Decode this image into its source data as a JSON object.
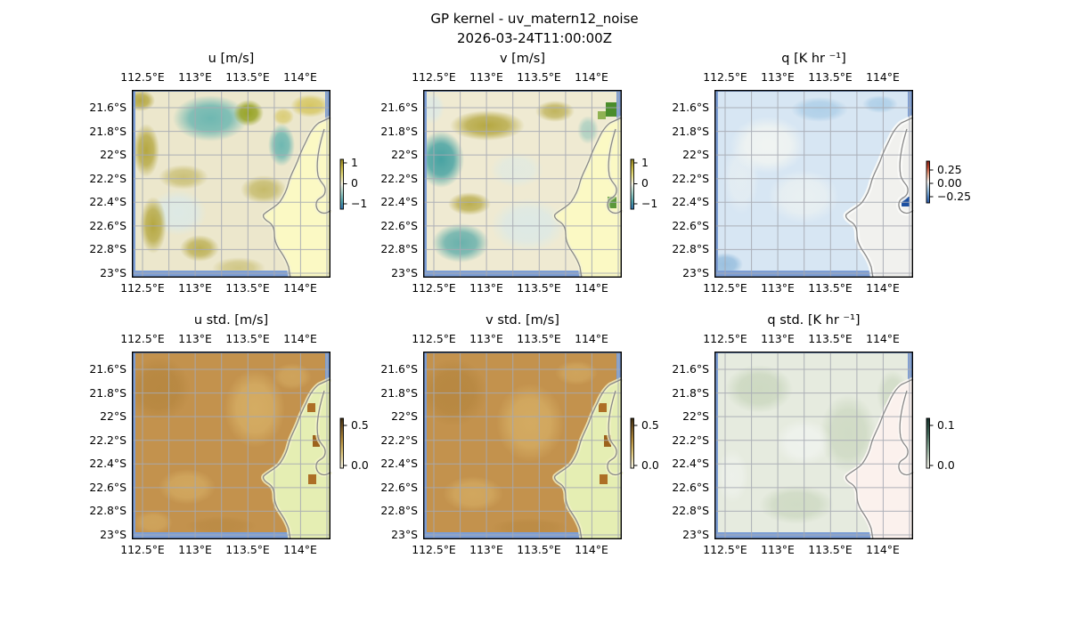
{
  "figure": {
    "suptitle_line1": "GP kernel - uv_matern12_noise",
    "suptitle_line2": "2026-03-24T11:00:00Z"
  },
  "axes": {
    "lon_ticks": [
      "112.5°E",
      "113°E",
      "113.5°E",
      "114°E"
    ],
    "lat_ticks": [
      "21.6°S",
      "21.8°S",
      "22°S",
      "22.2°S",
      "22.4°S",
      "22.6°S",
      "22.8°S",
      "23°S"
    ]
  },
  "panels": [
    {
      "id": "u",
      "title": "u [m/s]",
      "colorbar": {
        "ticks": [
          "1",
          "0",
          "−1"
        ]
      }
    },
    {
      "id": "v",
      "title": "v [m/s]",
      "colorbar": {
        "ticks": [
          "1",
          "0",
          "−1"
        ]
      }
    },
    {
      "id": "q",
      "title": "q [K hr ⁻¹]",
      "colorbar": {
        "ticks": [
          "0.25",
          "0.00",
          "−0.25"
        ]
      }
    },
    {
      "id": "u_std",
      "title": "u std. [m/s]",
      "colorbar": {
        "ticks": [
          "0.5",
          "0.0"
        ]
      }
    },
    {
      "id": "v_std",
      "title": "v std. [m/s]",
      "colorbar": {
        "ticks": [
          "0.5",
          "0.0"
        ]
      }
    },
    {
      "id": "q_std",
      "title": "q std. [K hr ⁻¹]",
      "colorbar": {
        "ticks": [
          "0.1",
          "0.0"
        ]
      }
    }
  ],
  "chart_data": {
    "type": "heatmap",
    "subtype": "geographic pcolormesh maps, 2 rows x 3 columns, cartopy-style with coastline of North West Cape / Exmouth, Western Australia",
    "suptitle": "GP kernel - uv_matern12_noise  2026-03-24T11:00:00Z",
    "lon_extent_deg_e": [
      112.35,
      114.25
    ],
    "lat_extent_deg_s": [
      -23.05,
      -21.55
    ],
    "lon_tick_values_e": [
      112.5,
      113.0,
      113.5,
      114.0
    ],
    "lat_tick_values_s": [
      -21.6,
      -21.8,
      -22.0,
      -22.2,
      -22.4,
      -22.6,
      -22.8,
      -23.0
    ],
    "gridline_spacing_deg": {
      "lon": 0.25,
      "lat": 0.2
    },
    "grid": true,
    "panels": [
      {
        "title": "u [m/s]",
        "row": 1,
        "col": 1,
        "cmap": "olive-yellow / white / teal diverging",
        "colorbar_ticks": [
          1,
          0,
          -1
        ],
        "description": "GP mean zonal velocity: mottled olive-yellow positive patches (~0.3-0.8) over most of the ocean with teal negative blobs (~-0.5) at top-center and east of 113.5°E near the cape; land masked pale yellow"
      },
      {
        "title": "v [m/s]",
        "row": 1,
        "col": 2,
        "cmap": "olive-yellow / white / teal diverging",
        "colorbar_ticks": [
          1,
          0,
          -1
        ],
        "description": "GP mean meridional velocity: strong teal negative blobs (~-0.8) at west-center (112.5°E, 22°S) and southwest (112.8°E, 22.8°S); olive positive band along north; dark green pixels (~1) at top-right corner and at 114.2°E, 22.4°S"
      },
      {
        "title": "q [K hr ⁻¹]",
        "row": 1,
        "col": 3,
        "cmap": "red / white / blue diverging (RdBu-like)",
        "colorbar_ticks": [
          0.25,
          0.0,
          -0.25
        ],
        "description": "GP mean heating rate: weakly negative (light blue, ~-0.05 to -0.1) over the ocean, near zero (white) over land, white NaN cells hugging the coastline, one strong negative dark-blue pixel (~-0.3) near 114.2°E 22.35°S"
      },
      {
        "title": "u std. [m/s]",
        "row": 2,
        "col": 1,
        "cmap": "cream-to-dark-brown sequential (turbid-like)",
        "colorbar_ticks": [
          0.5,
          0.0
        ],
        "description": "posterior std of u: roughly uniform tan-brown ~0.4-0.5 over ocean, small (pale yellow-green) over land with a few brown pixels near the cape coastline"
      },
      {
        "title": "v std. [m/s]",
        "row": 2,
        "col": 2,
        "cmap": "cream-to-dark-brown sequential (turbid-like)",
        "colorbar_ticks": [
          0.5,
          0.0
        ],
        "description": "posterior std of v: roughly uniform tan-brown ~0.4-0.5 over ocean, small over land with a few brown pixels near the cape coastline"
      },
      {
        "title": "q std. [K hr ⁻¹]",
        "row": 2,
        "col": 3,
        "cmap": "off-white-to-dark-teal-green sequential",
        "colorbar_ticks": [
          0.1,
          0.0
        ],
        "description": "posterior std of q: small everywhere, pale grey-green mottling (~0.01-0.03) over ocean, near-white pale pink over land"
      }
    ]
  }
}
